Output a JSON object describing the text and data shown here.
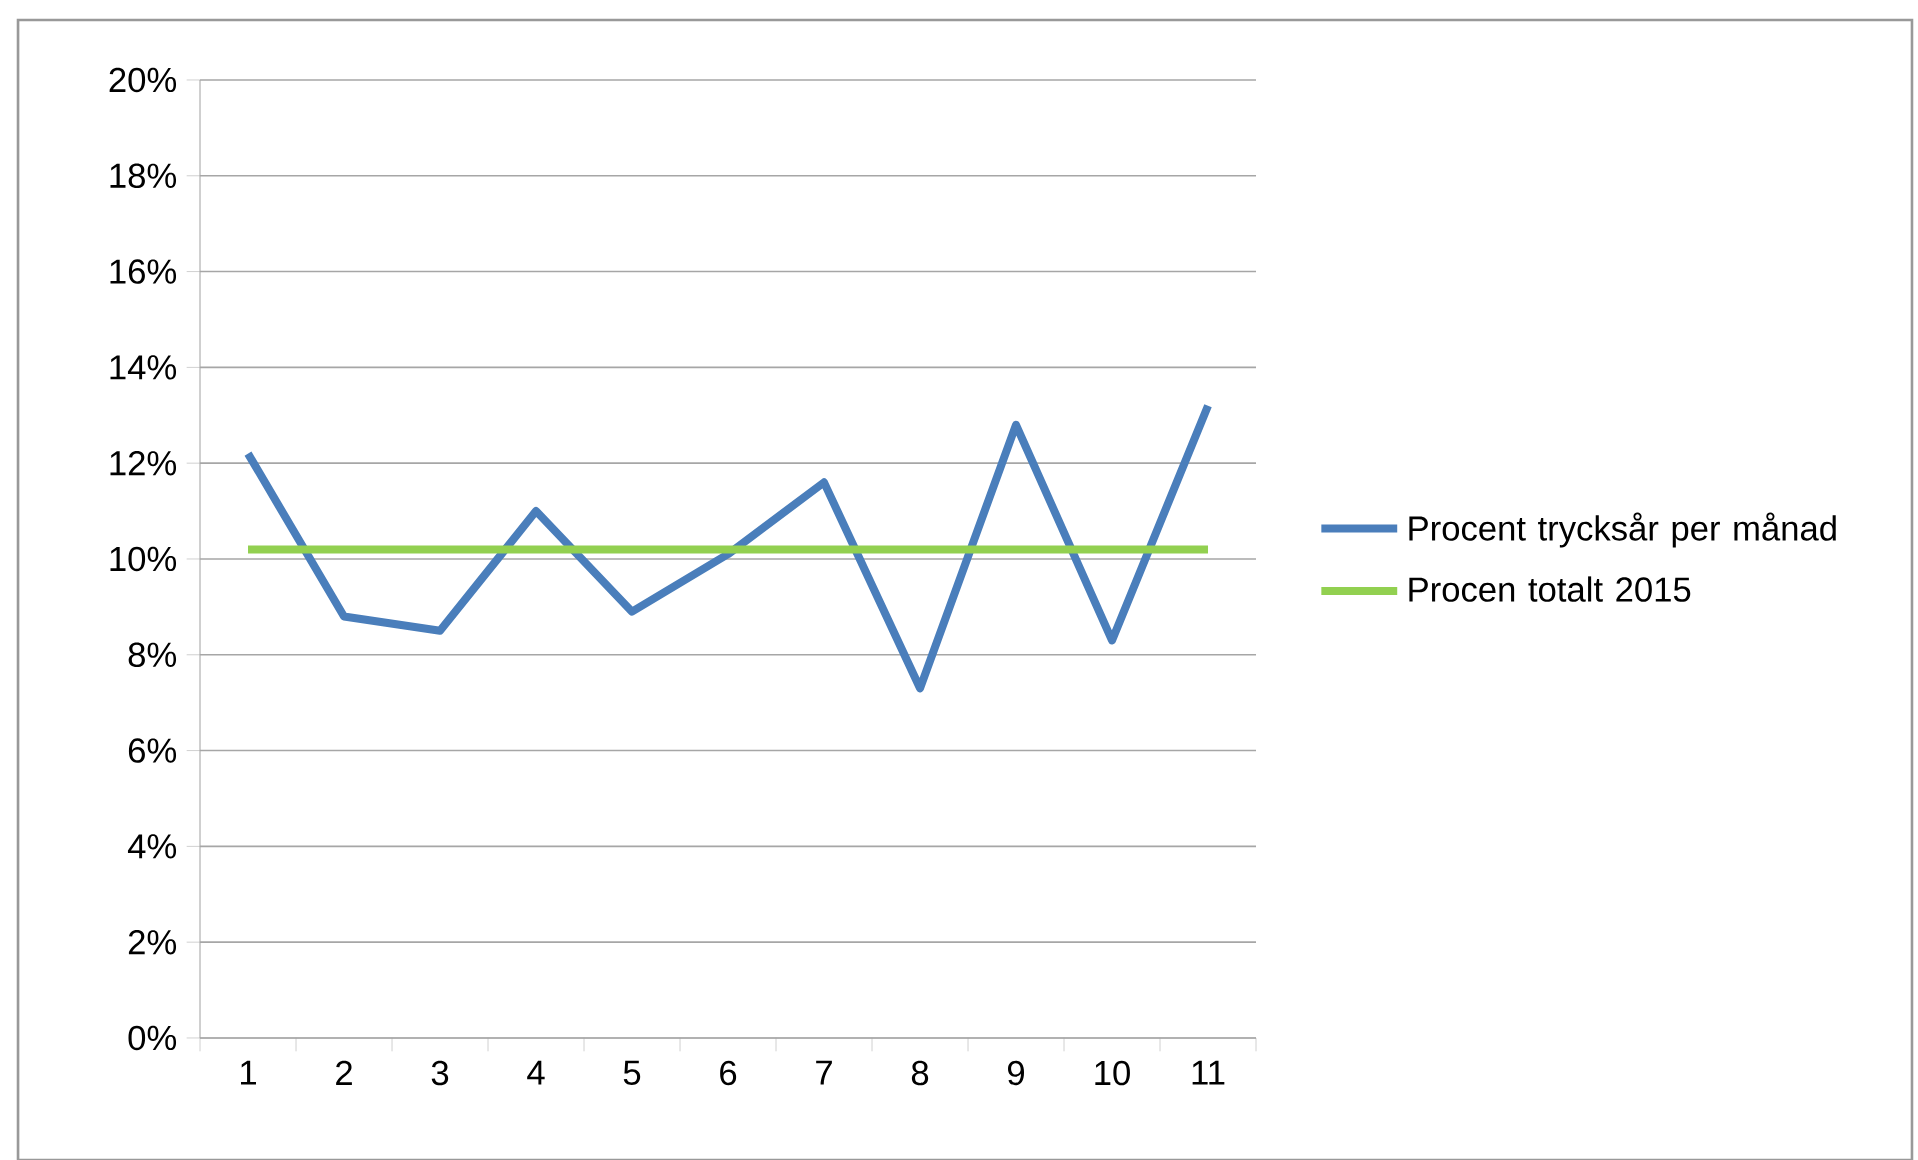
{
  "chart_data": {
    "type": "line",
    "categories": [
      "1",
      "2",
      "3",
      "4",
      "5",
      "6",
      "7",
      "8",
      "9",
      "10",
      "11"
    ],
    "series": [
      {
        "name": "Procent trycksår per månad",
        "color": "#4a7ebb",
        "values": [
          12.2,
          8.8,
          8.5,
          11.0,
          8.9,
          10.1,
          11.6,
          7.3,
          12.8,
          8.3,
          13.2
        ]
      },
      {
        "name": "Procen totalt 2015",
        "color": "#92d050",
        "values": [
          10.2,
          10.2,
          10.2,
          10.2,
          10.2,
          10.2,
          10.2,
          10.2,
          10.2,
          10.2,
          10.2
        ]
      }
    ],
    "ylim": [
      0,
      20
    ],
    "yticks": [
      {
        "value": 0,
        "label": "0%"
      },
      {
        "value": 2,
        "label": "2%"
      },
      {
        "value": 4,
        "label": "4%"
      },
      {
        "value": 6,
        "label": "6%"
      },
      {
        "value": 8,
        "label": "8%"
      },
      {
        "value": 10,
        "label": "10%"
      },
      {
        "value": 12,
        "label": "12%"
      },
      {
        "value": 14,
        "label": "14%"
      },
      {
        "value": 16,
        "label": "16%"
      },
      {
        "value": 18,
        "label": "18%"
      },
      {
        "value": 20,
        "label": "20%"
      }
    ],
    "grid": "y",
    "legend": "right",
    "marker": "none",
    "line_style": "solid"
  }
}
